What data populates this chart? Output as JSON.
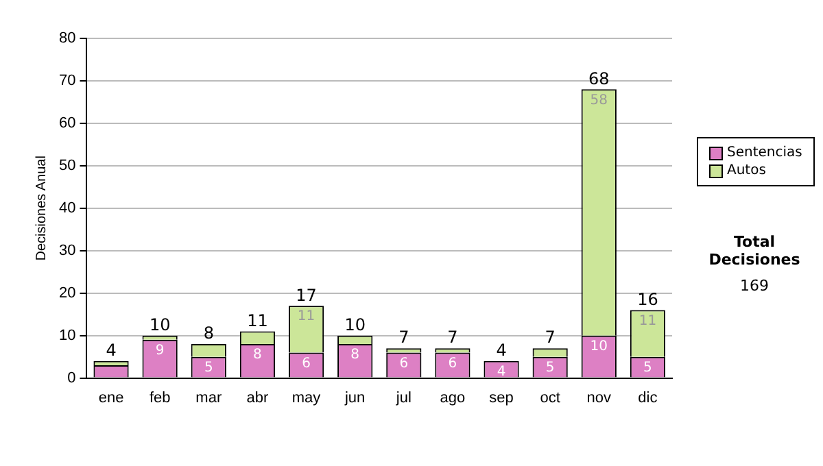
{
  "chart_data": {
    "type": "bar",
    "stacked": true,
    "ylabel": "Decisiones Anual",
    "categories": [
      "ene",
      "feb",
      "mar",
      "abr",
      "may",
      "jun",
      "jul",
      "ago",
      "sep",
      "oct",
      "nov",
      "dic"
    ],
    "series": [
      {
        "name": "Sentencias",
        "color": "#dd80c4",
        "values": [
          3,
          9,
          5,
          8,
          6,
          8,
          6,
          6,
          4,
          5,
          10,
          5
        ],
        "value_labels": [
          null,
          "9",
          "5",
          "8",
          "6",
          "8",
          "6",
          "6",
          "4",
          "5",
          "10",
          "5"
        ]
      },
      {
        "name": "Autos",
        "color": "#cce699",
        "values": [
          1,
          1,
          3,
          3,
          11,
          2,
          1,
          1,
          0,
          2,
          58,
          11
        ],
        "value_labels": [
          null,
          null,
          null,
          null,
          "11",
          null,
          null,
          null,
          null,
          null,
          "58",
          "11"
        ]
      }
    ],
    "totals": [
      "4",
      "10",
      "8",
      "11",
      "17",
      "10",
      "7",
      "7",
      "4",
      "7",
      "68",
      "16"
    ],
    "ylim": [
      0,
      80
    ],
    "yticks": [
      0,
      10,
      20,
      30,
      40,
      50,
      60,
      70,
      80
    ],
    "grid": "y",
    "legend": "right",
    "annotations": [
      "Total Decisiones",
      "169"
    ]
  }
}
